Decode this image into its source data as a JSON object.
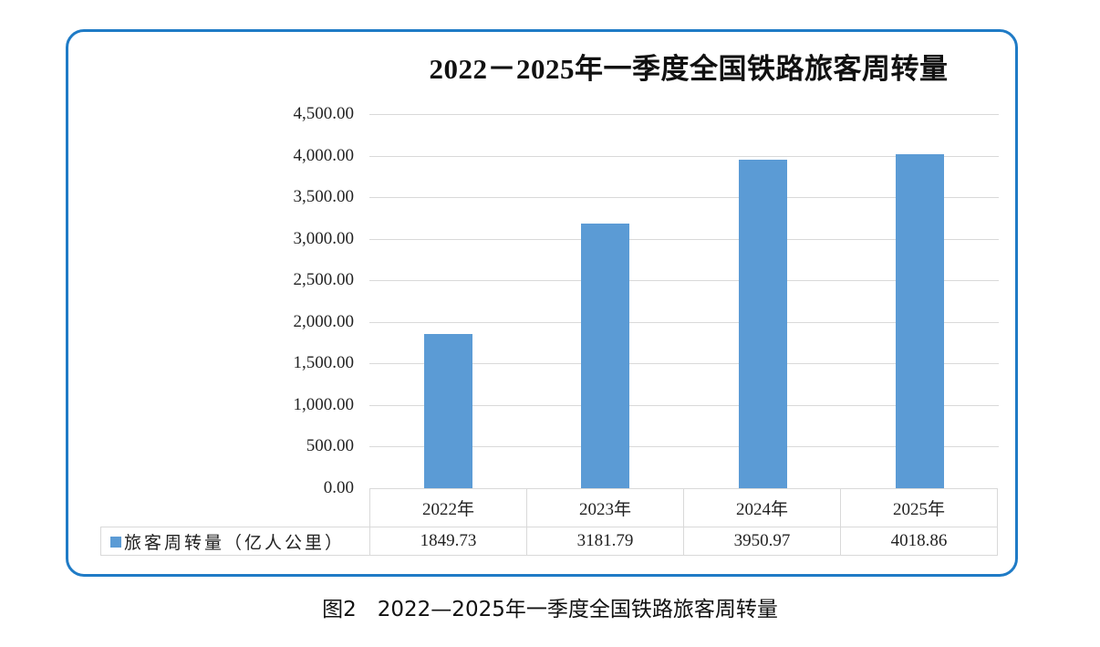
{
  "chart_data": {
    "type": "bar",
    "title": "2022－2025年一季度全国铁路旅客周转量",
    "categories": [
      "2022年",
      "2023年",
      "2024年",
      "2025年"
    ],
    "series": [
      {
        "name": "旅客周转量（亿人公里）",
        "values": [
          1849.73,
          3181.79,
          3950.97,
          4018.86
        ],
        "color": "#5b9bd5"
      }
    ],
    "xlabel": "",
    "ylabel": "",
    "ylim": [
      0,
      4500
    ],
    "yticks": [
      "4,500.00",
      "4,000.00",
      "3,500.00",
      "3,000.00",
      "2,500.00",
      "2,000.00",
      "1,500.00",
      "1,000.00",
      "500.00",
      "0.00"
    ],
    "grid": true,
    "legend_position": "data-table-left",
    "data_table": true
  },
  "table": {
    "legend_label": "旅客周转量（亿人公里）",
    "headers": [
      "2022年",
      "2023年",
      "2024年",
      "2025年"
    ],
    "values": [
      "1849.73",
      "3181.79",
      "3950.97",
      "4018.86"
    ]
  },
  "caption": "图2　2022—2025年一季度全国铁路旅客周转量",
  "colors": {
    "border": "#1f7bc6",
    "bar": "#5b9bd5",
    "grid": "#d9d9d9"
  }
}
